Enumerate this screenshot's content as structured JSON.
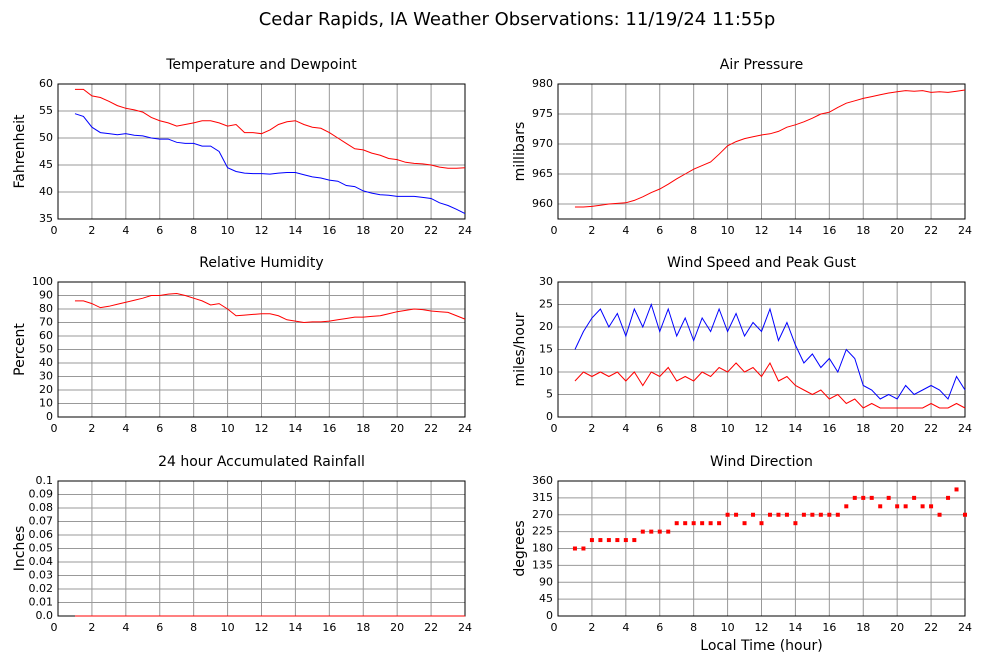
{
  "title": "Cedar Rapids, IA Weather Observations: 11/19/24 11:55p",
  "chart_data": [
    {
      "type": "line",
      "title": "Temperature and Dewpoint",
      "ylabel": "Fahrenheit",
      "x": [
        1,
        1.5,
        2,
        2.5,
        3,
        3.5,
        4,
        4.5,
        5,
        5.5,
        6,
        6.5,
        7,
        7.5,
        8,
        8.5,
        9,
        9.5,
        10,
        10.5,
        11,
        11.5,
        12,
        12.5,
        13,
        13.5,
        14,
        14.5,
        15,
        15.5,
        16,
        16.5,
        17,
        17.5,
        18,
        18.5,
        19,
        19.5,
        20,
        20.5,
        21,
        21.5,
        22,
        22.5,
        23,
        23.5,
        24
      ],
      "series": [
        {
          "color": "#ff0000",
          "values": [
            59,
            59,
            57.8,
            57.5,
            56.8,
            56,
            55.5,
            55.2,
            54.8,
            53.8,
            53.2,
            52.8,
            52.2,
            52.5,
            52.8,
            53.2,
            53.2,
            52.8,
            52.2,
            52.5,
            51,
            51,
            50.8,
            51.5,
            52.5,
            53,
            53.2,
            52.5,
            52,
            51.8,
            51,
            50,
            49,
            48,
            47.8,
            47.2,
            46.8,
            46.2,
            46,
            45.5,
            45.3,
            45.2,
            45,
            44.6,
            44.4,
            44.4,
            44.5
          ]
        },
        {
          "color": "#0000ff",
          "values": [
            54.5,
            54,
            52,
            51,
            50.8,
            50.6,
            50.8,
            50.5,
            50.4,
            50,
            49.8,
            49.8,
            49.2,
            49,
            49,
            48.5,
            48.5,
            47.5,
            44.5,
            43.8,
            43.5,
            43.4,
            43.4,
            43.3,
            43.5,
            43.6,
            43.6,
            43.2,
            42.8,
            42.6,
            42.2,
            42,
            41.2,
            41,
            40.2,
            39.8,
            39.5,
            39.4,
            39.2,
            39.2,
            39.2,
            39,
            38.8,
            38,
            37.5,
            36.8,
            36
          ]
        }
      ],
      "xlim": [
        0,
        24
      ],
      "xticks": [
        0,
        2,
        4,
        6,
        8,
        10,
        12,
        14,
        16,
        18,
        20,
        22,
        24
      ],
      "ylim": [
        35,
        60
      ],
      "yticks": [
        35,
        40,
        45,
        50,
        55,
        60
      ],
      "grid": true
    },
    {
      "type": "line",
      "title": "Air Pressure",
      "ylabel": "millibars",
      "x": [
        1,
        1.5,
        2,
        2.5,
        3,
        3.5,
        4,
        4.5,
        5,
        5.5,
        6,
        6.5,
        7,
        7.5,
        8,
        8.5,
        9,
        9.5,
        10,
        10.5,
        11,
        11.5,
        12,
        12.5,
        13,
        13.5,
        14,
        14.5,
        15,
        15.5,
        16,
        16.5,
        17,
        17.5,
        18,
        18.5,
        19,
        19.5,
        20,
        20.5,
        21,
        21.5,
        22,
        22.5,
        23,
        23.5,
        24
      ],
      "series": [
        {
          "color": "#ff0000",
          "values": [
            959.5,
            959.5,
            959.6,
            959.8,
            960,
            960.1,
            960.2,
            960.6,
            961.2,
            961.9,
            962.5,
            963.3,
            964.2,
            965,
            965.8,
            966.4,
            967,
            968.3,
            969.7,
            970.4,
            970.9,
            971.2,
            971.5,
            971.7,
            972.1,
            972.8,
            973.2,
            973.7,
            974.3,
            975,
            975.3,
            976.1,
            976.8,
            977.2,
            977.6,
            977.9,
            978.2,
            978.5,
            978.7,
            978.9,
            978.8,
            978.9,
            978.6,
            978.7,
            978.6,
            978.8,
            979
          ]
        }
      ],
      "xlim": [
        0,
        24
      ],
      "xticks": [
        0,
        2,
        4,
        6,
        8,
        10,
        12,
        14,
        16,
        18,
        20,
        22,
        24
      ],
      "ylim": [
        957.5,
        980
      ],
      "yticks": [
        960,
        965,
        970,
        975,
        980
      ],
      "grid": true
    },
    {
      "type": "line",
      "title": "Relative Humidity",
      "ylabel": "Percent",
      "x": [
        1,
        1.5,
        2,
        2.5,
        3,
        3.5,
        4,
        4.5,
        5,
        5.5,
        6,
        6.5,
        7,
        7.5,
        8,
        8.5,
        9,
        9.5,
        10,
        10.5,
        11,
        11.5,
        12,
        12.5,
        13,
        13.5,
        14,
        14.5,
        15,
        15.5,
        16,
        16.5,
        17,
        17.5,
        18,
        18.5,
        19,
        19.5,
        20,
        20.5,
        21,
        21.5,
        22,
        22.5,
        23,
        23.5,
        24
      ],
      "series": [
        {
          "color": "#ff0000",
          "values": [
            86,
            86,
            84,
            81,
            82,
            83.5,
            85,
            86.5,
            88,
            90,
            90,
            91,
            91.5,
            90,
            88,
            86,
            83,
            84,
            80,
            75,
            75.5,
            76,
            76.5,
            76.5,
            75,
            72,
            71,
            70,
            70.5,
            70.5,
            71,
            72,
            73,
            74,
            74,
            74.5,
            75,
            76.5,
            78,
            79,
            80,
            79.5,
            78.5,
            78,
            77.5,
            75,
            72.5
          ]
        }
      ],
      "xlim": [
        0,
        24
      ],
      "xticks": [
        0,
        2,
        4,
        6,
        8,
        10,
        12,
        14,
        16,
        18,
        20,
        22,
        24
      ],
      "ylim": [
        0,
        100
      ],
      "yticks": [
        0,
        10,
        20,
        30,
        40,
        50,
        60,
        70,
        80,
        90,
        100
      ],
      "grid": true
    },
    {
      "type": "line",
      "title": "Wind Speed and Peak Gust",
      "ylabel": "miles/hour",
      "x": [
        1,
        1.5,
        2,
        2.5,
        3,
        3.5,
        4,
        4.5,
        5,
        5.5,
        6,
        6.5,
        7,
        7.5,
        8,
        8.5,
        9,
        9.5,
        10,
        10.5,
        11,
        11.5,
        12,
        12.5,
        13,
        13.5,
        14,
        14.5,
        15,
        15.5,
        16,
        16.5,
        17,
        17.5,
        18,
        18.5,
        19,
        19.5,
        20,
        20.5,
        21,
        21.5,
        22,
        22.5,
        23,
        23.5,
        24
      ],
      "series": [
        {
          "color": "#0000ff",
          "values": [
            15,
            19,
            22,
            24,
            20,
            23,
            18,
            24,
            20,
            25,
            19,
            24,
            18,
            22,
            17,
            22,
            19,
            24,
            19,
            23,
            18,
            21,
            19,
            24,
            17,
            21,
            16,
            12,
            14,
            11,
            13,
            10,
            15,
            13,
            7,
            6,
            4,
            5,
            4,
            7,
            5,
            6,
            7,
            6,
            4,
            9,
            6
          ]
        },
        {
          "color": "#ff0000",
          "values": [
            8,
            10,
            9,
            10,
            9,
            10,
            8,
            10,
            7,
            10,
            9,
            11,
            8,
            9,
            8,
            10,
            9,
            11,
            10,
            12,
            10,
            11,
            9,
            12,
            8,
            9,
            7,
            6,
            5,
            6,
            4,
            5,
            3,
            4,
            2,
            3,
            2,
            2,
            2,
            2,
            2,
            2,
            3,
            2,
            2,
            3,
            2
          ]
        }
      ],
      "xlim": [
        0,
        24
      ],
      "xticks": [
        0,
        2,
        4,
        6,
        8,
        10,
        12,
        14,
        16,
        18,
        20,
        22,
        24
      ],
      "ylim": [
        0,
        30
      ],
      "yticks": [
        0,
        5,
        10,
        15,
        20,
        25,
        30
      ],
      "grid": true
    },
    {
      "type": "line",
      "title": "24 hour Accumulated Rainfall",
      "ylabel": "Inches",
      "x": [
        1,
        24
      ],
      "series": [
        {
          "color": "#ff0000",
          "values": [
            0,
            0
          ]
        }
      ],
      "xlim": [
        0,
        24
      ],
      "xticks": [
        0,
        2,
        4,
        6,
        8,
        10,
        12,
        14,
        16,
        18,
        20,
        22,
        24
      ],
      "ylim": [
        0,
        0.1
      ],
      "yticks": [
        {
          "value": 0,
          "label": "0.0"
        },
        0.01,
        0.02,
        0.03,
        0.04,
        0.05,
        0.06,
        0.07,
        0.08,
        0.09,
        0.1
      ],
      "grid": true
    },
    {
      "type": "scatter",
      "title": "Wind Direction",
      "ylabel": "degrees",
      "xlabel": "Local Time (hour)",
      "x": [
        1,
        1.5,
        2,
        2.5,
        3,
        3.5,
        4,
        4.5,
        5,
        5.5,
        6,
        6.5,
        7,
        7.5,
        8,
        8.5,
        9,
        9.5,
        10,
        10.5,
        11,
        11.5,
        12,
        12.5,
        13,
        13.5,
        14,
        14.5,
        15,
        15.5,
        16,
        16.5,
        17,
        17.5,
        18,
        18.5,
        19,
        19.5,
        20,
        20.5,
        21,
        21.5,
        22,
        22.5,
        23,
        23.5,
        24
      ],
      "series": [
        {
          "color": "#ff0000",
          "values": [
            180,
            180,
            202.5,
            202.5,
            202.5,
            202.5,
            202.5,
            202.5,
            225,
            225,
            225,
            225,
            247.5,
            247.5,
            247.5,
            247.5,
            247.5,
            247.5,
            270,
            270,
            247.5,
            270,
            247.5,
            270,
            270,
            270,
            247.5,
            270,
            270,
            270,
            270,
            270,
            292.5,
            315,
            315,
            315,
            292.5,
            315,
            292.5,
            292.5,
            315,
            292.5,
            292.5,
            270,
            315,
            337.5,
            270
          ]
        }
      ],
      "xlim": [
        0,
        24
      ],
      "xticks": [
        0,
        2,
        4,
        6,
        8,
        10,
        12,
        14,
        16,
        18,
        20,
        22,
        24
      ],
      "ylim": [
        0,
        360
      ],
      "yticks": [
        0,
        45,
        90,
        135,
        180,
        225,
        270,
        315,
        360
      ],
      "grid": true
    }
  ]
}
